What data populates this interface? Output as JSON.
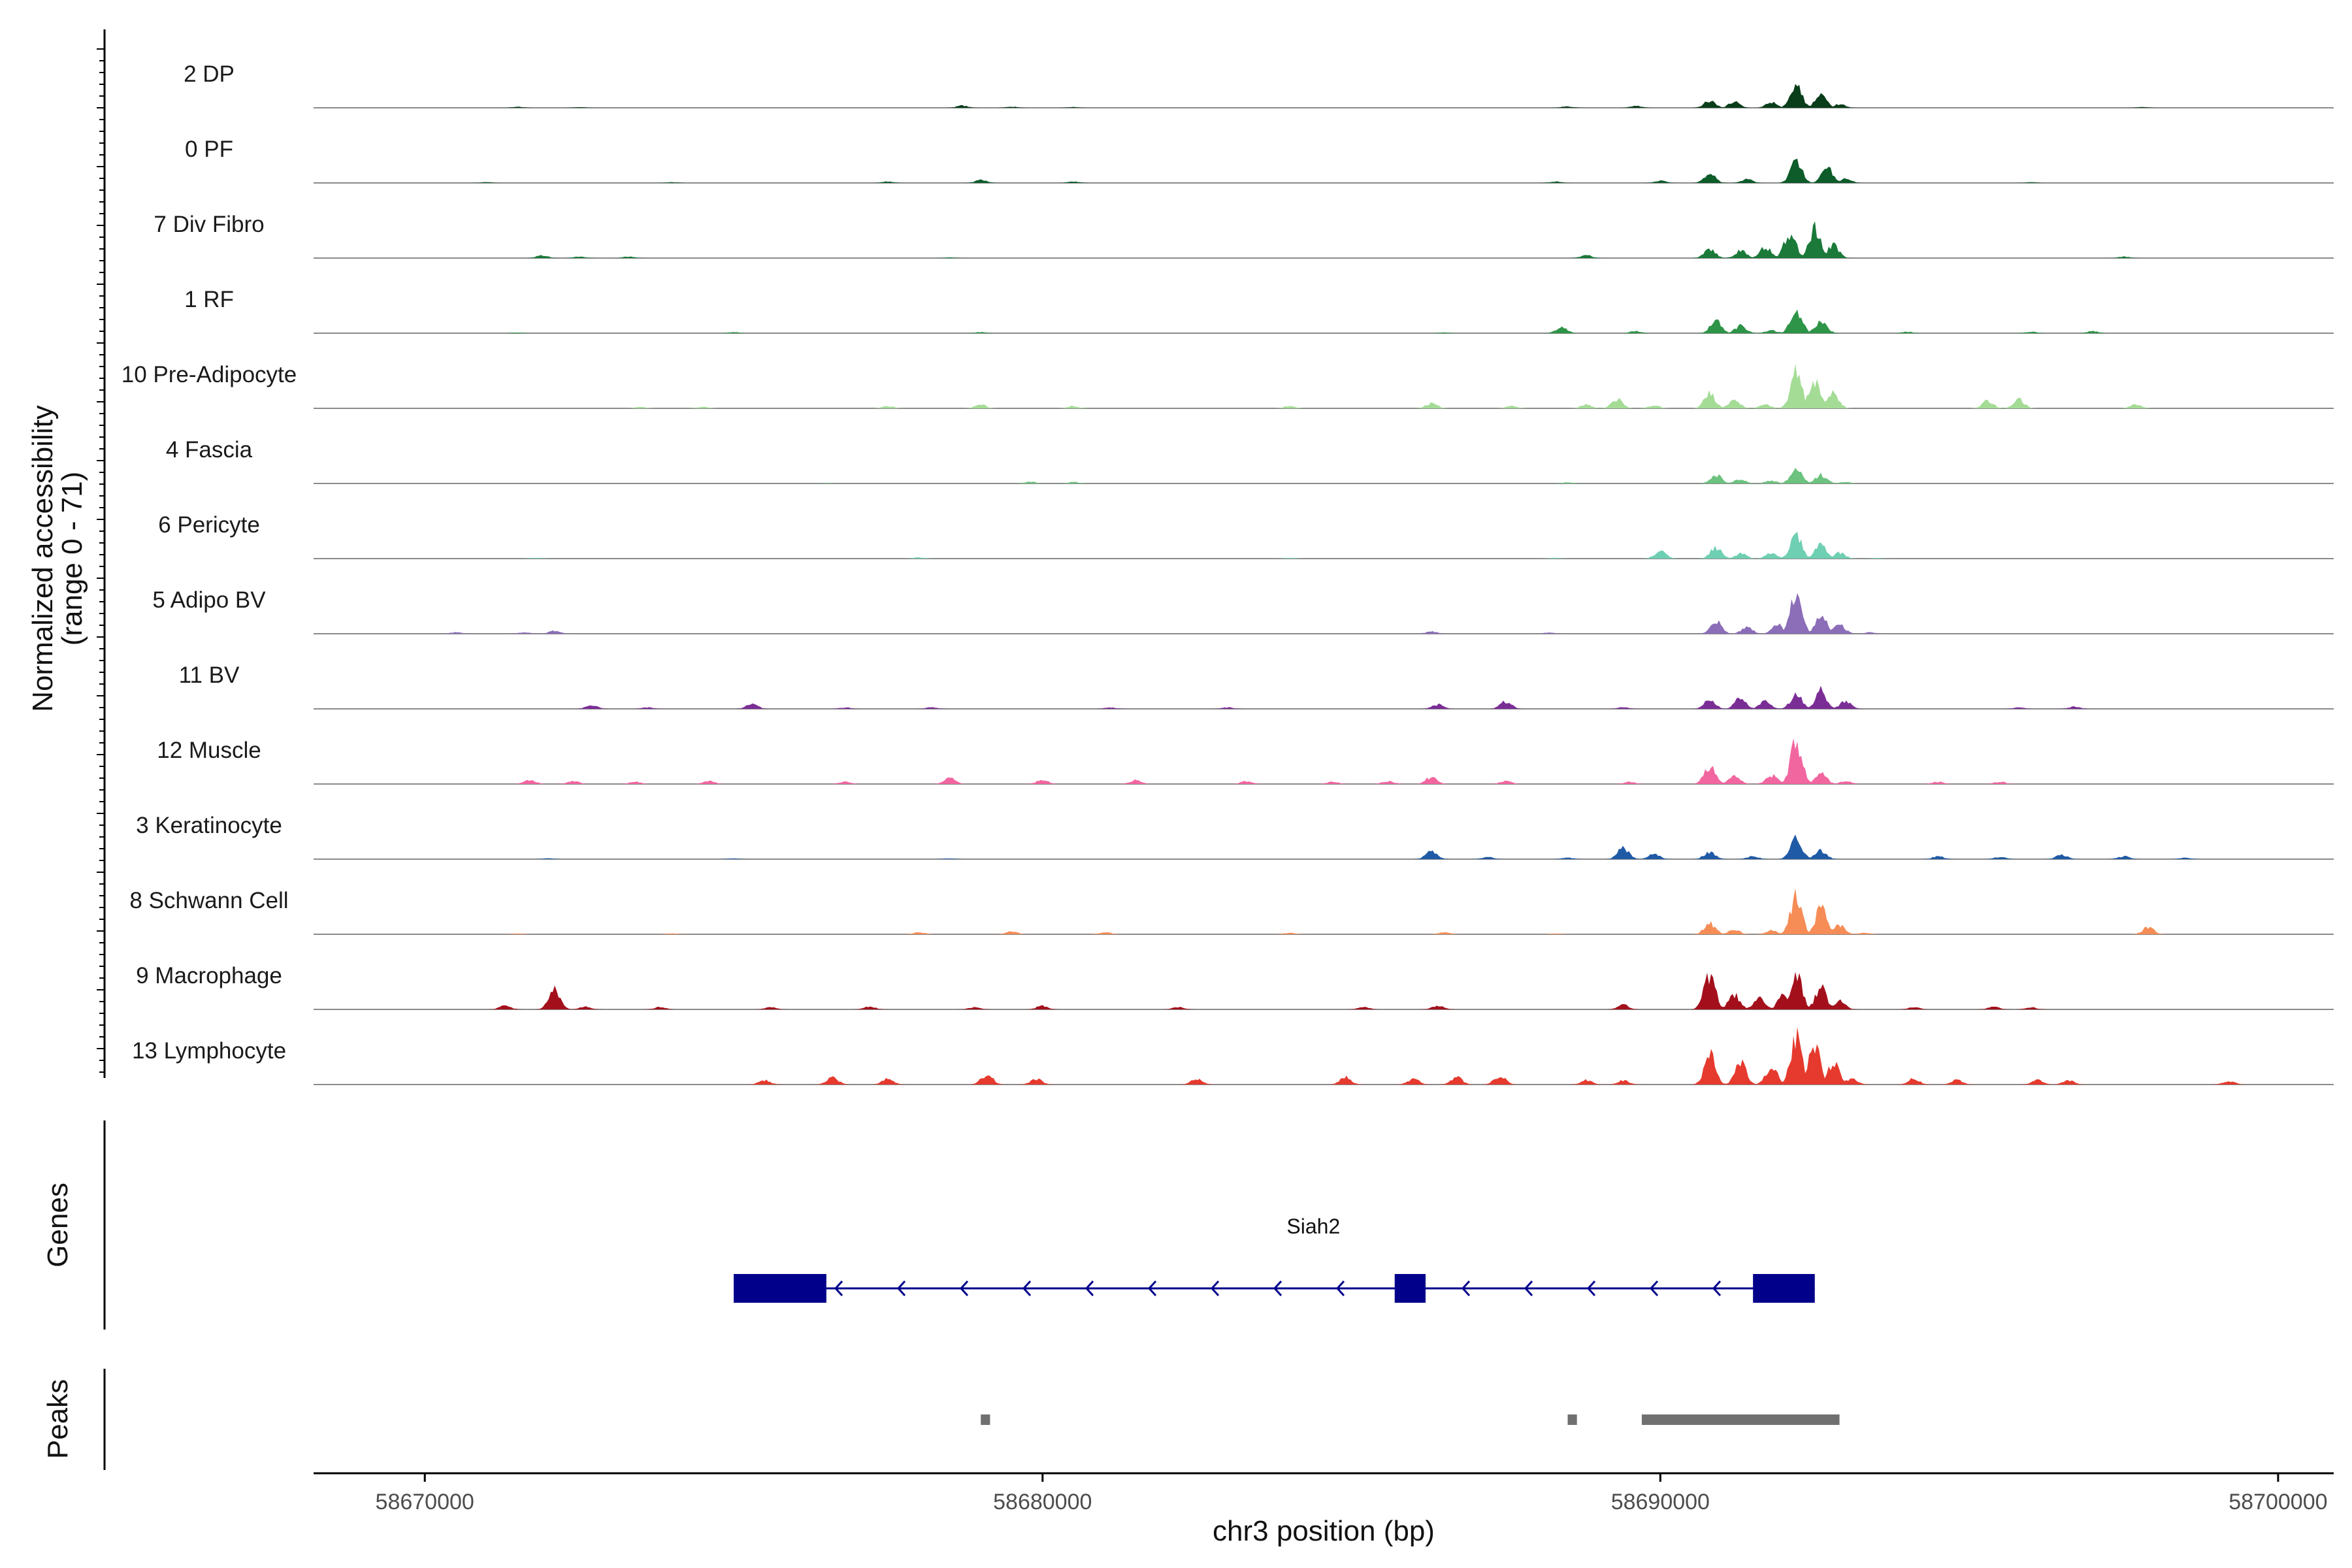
{
  "chart_data": {
    "type": "area",
    "title": "",
    "chromosome": "chr3",
    "xlabel": "chr3 position (bp)",
    "ylabel": "Normalized accessibility",
    "ylabel_range": "(range 0 - 71)",
    "ylim": [
      0,
      71
    ],
    "xlim": [
      58668200,
      58700900
    ],
    "x_ticks": [
      58670000,
      58680000,
      58690000,
      58700000
    ],
    "x_tick_labels": [
      "58670000",
      "58680000",
      "58690000",
      "58700000"
    ],
    "series": [
      {
        "name": "2 DP",
        "color": "#0a3d1a",
        "profile": [
          [
            58671500,
            1.5
          ],
          [
            58672500,
            1
          ],
          [
            58678700,
            3
          ],
          [
            58679500,
            1.5
          ],
          [
            58680500,
            1
          ],
          [
            58688500,
            2
          ],
          [
            58689600,
            2.5
          ],
          [
            58690800,
            10
          ],
          [
            58691200,
            8
          ],
          [
            58691800,
            7
          ],
          [
            58692200,
            32
          ],
          [
            58692600,
            18
          ],
          [
            58692900,
            5
          ],
          [
            58697800,
            1
          ]
        ]
      },
      {
        "name": "0 PF",
        "color": "#0d5c2a",
        "profile": [
          [
            58671000,
            1
          ],
          [
            58674000,
            1
          ],
          [
            58677500,
            2
          ],
          [
            58679000,
            4
          ],
          [
            58680500,
            2
          ],
          [
            58688300,
            2
          ],
          [
            58690000,
            3
          ],
          [
            58690800,
            13
          ],
          [
            58691400,
            5
          ],
          [
            58692200,
            30
          ],
          [
            58692700,
            20
          ],
          [
            58693000,
            6
          ],
          [
            58696000,
            1
          ]
        ]
      },
      {
        "name": "7 Div Fibro",
        "color": "#1b7a3a",
        "profile": [
          [
            58671900,
            4
          ],
          [
            58672500,
            2
          ],
          [
            58673300,
            2
          ],
          [
            58678500,
            1
          ],
          [
            58688800,
            4
          ],
          [
            58690800,
            12
          ],
          [
            58691300,
            10
          ],
          [
            58691700,
            15
          ],
          [
            58692100,
            35
          ],
          [
            58692500,
            40
          ],
          [
            58692800,
            18
          ],
          [
            58697500,
            2
          ]
        ]
      },
      {
        "name": "1 RF",
        "color": "#2e9448",
        "profile": [
          [
            58671500,
            1
          ],
          [
            58675000,
            1.5
          ],
          [
            58679000,
            1.5
          ],
          [
            58686500,
            1
          ],
          [
            58688400,
            8
          ],
          [
            58689600,
            3
          ],
          [
            58690900,
            18
          ],
          [
            58691300,
            10
          ],
          [
            58691800,
            4
          ],
          [
            58692200,
            32
          ],
          [
            58692600,
            18
          ],
          [
            58694000,
            2
          ],
          [
            58696000,
            2
          ],
          [
            58697000,
            3
          ]
        ]
      },
      {
        "name": "10 Pre-Adipocyte",
        "color": "#a4dc96",
        "profile": [
          [
            58673500,
            2
          ],
          [
            58674500,
            2
          ],
          [
            58677500,
            3
          ],
          [
            58679000,
            5
          ],
          [
            58680500,
            3
          ],
          [
            58684000,
            3
          ],
          [
            58686300,
            7
          ],
          [
            58687600,
            3
          ],
          [
            58688800,
            5
          ],
          [
            58689300,
            12
          ],
          [
            58689900,
            4
          ],
          [
            58690800,
            20
          ],
          [
            58691200,
            12
          ],
          [
            58691700,
            5
          ],
          [
            58692200,
            50
          ],
          [
            58692500,
            40
          ],
          [
            58692800,
            20
          ],
          [
            58695300,
            10
          ],
          [
            58695800,
            12
          ],
          [
            58697700,
            5
          ]
        ]
      },
      {
        "name": "4 Fascia",
        "color": "#6cc27e",
        "profile": [
          [
            58676500,
            0.5
          ],
          [
            58679800,
            2.5
          ],
          [
            58680500,
            2
          ],
          [
            58688500,
            1.5
          ],
          [
            58690900,
            12
          ],
          [
            58691300,
            6
          ],
          [
            58691800,
            4
          ],
          [
            58692200,
            20
          ],
          [
            58692600,
            12
          ],
          [
            58693000,
            2
          ]
        ]
      },
      {
        "name": "6 Pericyte",
        "color": "#6fcfb2",
        "profile": [
          [
            58671800,
            1
          ],
          [
            58678000,
            1.5
          ],
          [
            58684000,
            1
          ],
          [
            58688300,
            1
          ],
          [
            58690000,
            10
          ],
          [
            58690900,
            15
          ],
          [
            58691300,
            7
          ],
          [
            58691800,
            8
          ],
          [
            58692200,
            35
          ],
          [
            58692600,
            20
          ],
          [
            58692900,
            8
          ],
          [
            58693500,
            1
          ]
        ]
      },
      {
        "name": "5 Adipo BV",
        "color": "#8b6db8",
        "profile": [
          [
            58670500,
            2
          ],
          [
            58671600,
            2
          ],
          [
            58672100,
            4
          ],
          [
            58686300,
            3
          ],
          [
            58688200,
            1.5
          ],
          [
            58690900,
            18
          ],
          [
            58691400,
            9
          ],
          [
            58691900,
            12
          ],
          [
            58692200,
            55
          ],
          [
            58692600,
            25
          ],
          [
            58692900,
            12
          ],
          [
            58693400,
            2
          ]
        ]
      },
      {
        "name": "11 BV",
        "color": "#7b2d96",
        "profile": [
          [
            58672700,
            5
          ],
          [
            58673600,
            2
          ],
          [
            58675300,
            7
          ],
          [
            58676800,
            2
          ],
          [
            58678200,
            2
          ],
          [
            58681100,
            2
          ],
          [
            58683000,
            2
          ],
          [
            58686400,
            6
          ],
          [
            58687500,
            10
          ],
          [
            58689400,
            2
          ],
          [
            58690800,
            12
          ],
          [
            58691300,
            15
          ],
          [
            58691700,
            10
          ],
          [
            58692200,
            20
          ],
          [
            58692600,
            25
          ],
          [
            58693000,
            10
          ],
          [
            58695800,
            2
          ],
          [
            58696700,
            3
          ]
        ]
      },
      {
        "name": "12 Muscle",
        "color": "#f266a0",
        "profile": [
          [
            58671700,
            6
          ],
          [
            58672400,
            4
          ],
          [
            58673400,
            3
          ],
          [
            58674600,
            4
          ],
          [
            58676800,
            3
          ],
          [
            58678500,
            8
          ],
          [
            58680000,
            6
          ],
          [
            58681500,
            5
          ],
          [
            58683300,
            4
          ],
          [
            58684700,
            3
          ],
          [
            58685600,
            4
          ],
          [
            58686300,
            10
          ],
          [
            58687500,
            4
          ],
          [
            58689500,
            3
          ],
          [
            58690800,
            25
          ],
          [
            58691200,
            10
          ],
          [
            58691800,
            12
          ],
          [
            58692200,
            60
          ],
          [
            58692600,
            15
          ],
          [
            58693000,
            4
          ],
          [
            58694500,
            3
          ],
          [
            58695500,
            3
          ]
        ]
      },
      {
        "name": "3 Keratinocyte",
        "color": "#1f5aa6",
        "profile": [
          [
            58672000,
            1
          ],
          [
            58675000,
            1
          ],
          [
            58678500,
            1
          ],
          [
            58686300,
            12
          ],
          [
            58687200,
            3
          ],
          [
            58688500,
            2
          ],
          [
            58689400,
            15
          ],
          [
            58689900,
            8
          ],
          [
            58690800,
            10
          ],
          [
            58691500,
            4
          ],
          [
            58692200,
            28
          ],
          [
            58692600,
            12
          ],
          [
            58694500,
            4
          ],
          [
            58695500,
            3
          ],
          [
            58696500,
            6
          ],
          [
            58697500,
            4
          ],
          [
            58698500,
            2
          ]
        ]
      },
      {
        "name": "8 Schwann Cell",
        "color": "#f68c56",
        "profile": [
          [
            58671500,
            1
          ],
          [
            58674000,
            1
          ],
          [
            58678000,
            3
          ],
          [
            58679500,
            4
          ],
          [
            58681000,
            3
          ],
          [
            58684000,
            2
          ],
          [
            58686500,
            3
          ],
          [
            58688300,
            1
          ],
          [
            58690800,
            15
          ],
          [
            58691200,
            6
          ],
          [
            58691800,
            5
          ],
          [
            58692200,
            55
          ],
          [
            58692600,
            35
          ],
          [
            58692900,
            12
          ],
          [
            58693300,
            2
          ],
          [
            58697900,
            10
          ]
        ]
      },
      {
        "name": "9 Macrophage",
        "color": "#a3101c",
        "profile": [
          [
            58671300,
            5
          ],
          [
            58672100,
            28
          ],
          [
            58672600,
            4
          ],
          [
            58673800,
            3
          ],
          [
            58675600,
            3
          ],
          [
            58677200,
            4
          ],
          [
            58678900,
            3
          ],
          [
            58680000,
            5
          ],
          [
            58682200,
            3
          ],
          [
            58685200,
            3
          ],
          [
            58686400,
            5
          ],
          [
            58689400,
            6
          ],
          [
            58690800,
            48
          ],
          [
            58691200,
            20
          ],
          [
            58691600,
            15
          ],
          [
            58692000,
            20
          ],
          [
            58692200,
            50
          ],
          [
            58692600,
            30
          ],
          [
            58692900,
            12
          ],
          [
            58694100,
            3
          ],
          [
            58695400,
            4
          ],
          [
            58696000,
            3
          ]
        ]
      },
      {
        "name": "13 Lymphocyte",
        "color": "#e63a2e",
        "profile": [
          [
            58675500,
            6
          ],
          [
            58676600,
            10
          ],
          [
            58677500,
            8
          ],
          [
            58679100,
            14
          ],
          [
            58679900,
            8
          ],
          [
            58682500,
            8
          ],
          [
            58684900,
            10
          ],
          [
            58686000,
            8
          ],
          [
            58686700,
            10
          ],
          [
            58687400,
            12
          ],
          [
            58688800,
            6
          ],
          [
            58689400,
            6
          ],
          [
            58690800,
            40
          ],
          [
            58691300,
            30
          ],
          [
            58691800,
            25
          ],
          [
            58692200,
            65
          ],
          [
            58692500,
            55
          ],
          [
            58692800,
            30
          ],
          [
            58693100,
            8
          ],
          [
            58694100,
            8
          ],
          [
            58694800,
            6
          ],
          [
            58696100,
            6
          ],
          [
            58696600,
            6
          ],
          [
            58699200,
            5
          ]
        ]
      }
    ],
    "genes": [
      {
        "name": "Siah2",
        "strand": "-",
        "start": 58675000,
        "end": 58692500,
        "exons": [
          [
            58675000,
            58676500
          ],
          [
            58685700,
            58686200
          ],
          [
            58691500,
            58692500
          ]
        ]
      }
    ],
    "peaks": [
      [
        58679000,
        58679150
      ],
      [
        58688500,
        58688650
      ],
      [
        58689700,
        58692900
      ]
    ],
    "track_labels": {
      "genes": "Genes",
      "peaks": "Peaks"
    }
  }
}
